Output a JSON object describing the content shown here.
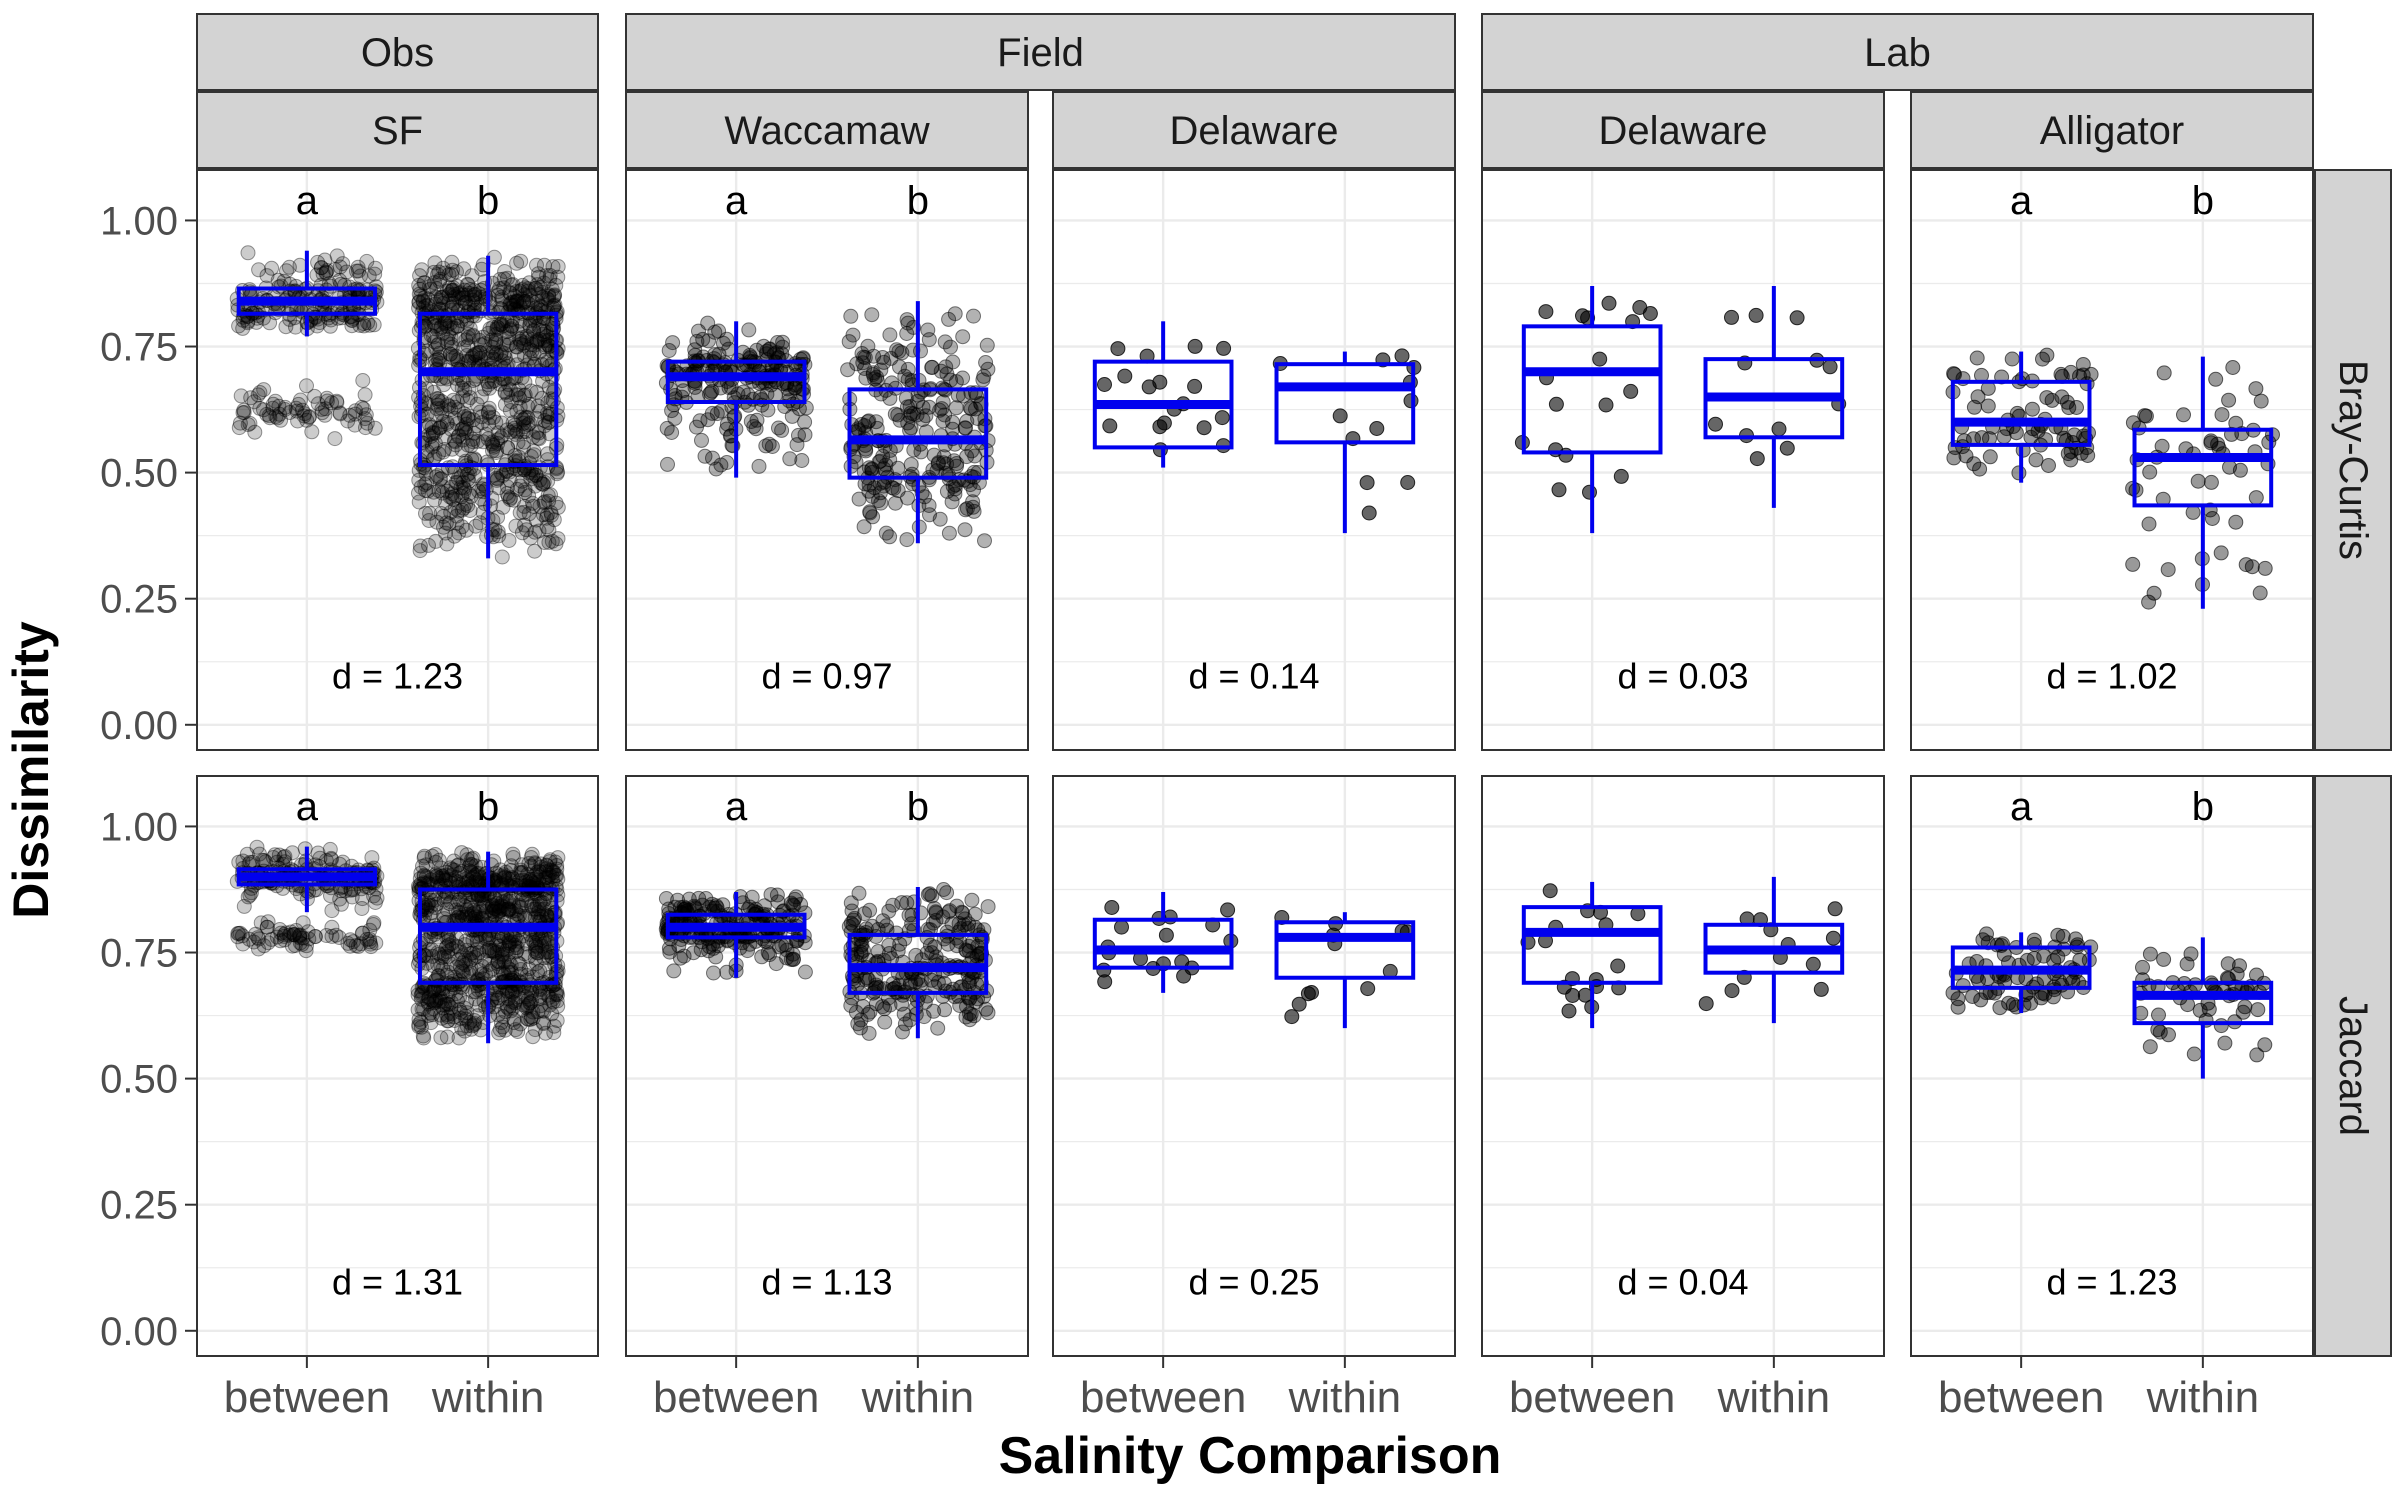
{
  "chart_data": {
    "type": "box",
    "ylabel": "Dissimilarity",
    "xlabel": "Salinity Comparison",
    "ylim": [
      -0.05,
      1.1
    ],
    "yticks": [
      "0.00",
      "0.25",
      "0.50",
      "0.75",
      "1.00"
    ],
    "categories": [
      "between",
      "within"
    ],
    "groups": [
      "Obs",
      "Field",
      "Lab"
    ],
    "sites": [
      "SF",
      "Waccamaw",
      "Delaware",
      "Delaware",
      "Alligator"
    ],
    "site_group": [
      0,
      1,
      1,
      2,
      2
    ],
    "metrics": [
      "Bray-Curtis",
      "Jaccard"
    ],
    "grid": true,
    "colors": {
      "box": "#0000ee",
      "points": "#000000",
      "strip": "#d3d3d3"
    },
    "panels": [
      [
        {
          "site": "SF",
          "letters": [
            "a",
            "b"
          ],
          "d_label": "d = 1.23",
          "n": [
            260,
            900
          ],
          "alpha": 0.2,
          "boxes": [
            {
              "q1": 0.815,
              "median": 0.84,
              "q3": 0.865,
              "wlo": 0.77,
              "whi": 0.94
            },
            {
              "q1": 0.515,
              "median": 0.7,
              "q3": 0.815,
              "wlo": 0.33,
              "whi": 0.93
            }
          ]
        },
        {
          "site": "Waccamaw",
          "letters": [
            "a",
            "b"
          ],
          "d_label": "d = 0.97",
          "n": [
            220,
            260
          ],
          "alpha": 0.3,
          "boxes": [
            {
              "q1": 0.64,
              "median": 0.69,
              "q3": 0.72,
              "wlo": 0.49,
              "whi": 0.8
            },
            {
              "q1": 0.49,
              "median": 0.565,
              "q3": 0.665,
              "wlo": 0.36,
              "whi": 0.84
            }
          ]
        },
        {
          "site": "Delaware",
          "letters": [
            "",
            ""
          ],
          "d_label": "d = 0.14",
          "n": [
            18,
            12
          ],
          "alpha": 0.6,
          "boxes": [
            {
              "q1": 0.55,
              "median": 0.635,
              "q3": 0.72,
              "wlo": 0.51,
              "whi": 0.8
            },
            {
              "q1": 0.56,
              "median": 0.67,
              "q3": 0.715,
              "wlo": 0.38,
              "whi": 0.74
            }
          ]
        },
        {
          "site": "Delaware",
          "letters": [
            "",
            ""
          ],
          "d_label": "d = 0.03",
          "n": [
            18,
            12
          ],
          "alpha": 0.6,
          "boxes": [
            {
              "q1": 0.54,
              "median": 0.7,
              "q3": 0.79,
              "wlo": 0.38,
              "whi": 0.87
            },
            {
              "q1": 0.57,
              "median": 0.65,
              "q3": 0.725,
              "wlo": 0.43,
              "whi": 0.87
            }
          ]
        },
        {
          "site": "Alligator",
          "letters": [
            "a",
            "b"
          ],
          "d_label": "d = 1.02",
          "n": [
            80,
            55
          ],
          "alpha": 0.4,
          "boxes": [
            {
              "q1": 0.555,
              "median": 0.6,
              "q3": 0.68,
              "wlo": 0.48,
              "whi": 0.74
            },
            {
              "q1": 0.435,
              "median": 0.53,
              "q3": 0.585,
              "wlo": 0.23,
              "whi": 0.73
            }
          ]
        }
      ],
      [
        {
          "site": "SF",
          "letters": [
            "a",
            "b"
          ],
          "d_label": "d = 1.31",
          "n": [
            260,
            900
          ],
          "alpha": 0.2,
          "boxes": [
            {
              "q1": 0.885,
              "median": 0.9,
              "q3": 0.915,
              "wlo": 0.83,
              "whi": 0.96
            },
            {
              "q1": 0.69,
              "median": 0.8,
              "q3": 0.875,
              "wlo": 0.57,
              "whi": 0.95
            }
          ]
        },
        {
          "site": "Waccamaw",
          "letters": [
            "a",
            "b"
          ],
          "d_label": "d = 1.13",
          "n": [
            220,
            260
          ],
          "alpha": 0.3,
          "boxes": [
            {
              "q1": 0.78,
              "median": 0.8,
              "q3": 0.825,
              "wlo": 0.7,
              "whi": 0.87
            },
            {
              "q1": 0.67,
              "median": 0.72,
              "q3": 0.785,
              "wlo": 0.58,
              "whi": 0.88
            }
          ]
        },
        {
          "site": "Delaware",
          "letters": [
            "",
            ""
          ],
          "d_label": "d = 0.25",
          "n": [
            18,
            12
          ],
          "alpha": 0.6,
          "boxes": [
            {
              "q1": 0.72,
              "median": 0.755,
              "q3": 0.815,
              "wlo": 0.67,
              "whi": 0.87
            },
            {
              "q1": 0.7,
              "median": 0.78,
              "q3": 0.81,
              "wlo": 0.6,
              "whi": 0.83
            }
          ]
        },
        {
          "site": "Delaware",
          "letters": [
            "",
            ""
          ],
          "d_label": "d = 0.04",
          "n": [
            18,
            12
          ],
          "alpha": 0.6,
          "boxes": [
            {
              "q1": 0.69,
              "median": 0.79,
              "q3": 0.84,
              "wlo": 0.6,
              "whi": 0.89
            },
            {
              "q1": 0.71,
              "median": 0.755,
              "q3": 0.805,
              "wlo": 0.61,
              "whi": 0.9
            }
          ]
        },
        {
          "site": "Alligator",
          "letters": [
            "a",
            "b"
          ],
          "d_label": "d = 1.23",
          "n": [
            80,
            55
          ],
          "alpha": 0.4,
          "boxes": [
            {
              "q1": 0.68,
              "median": 0.715,
              "q3": 0.76,
              "wlo": 0.63,
              "whi": 0.79
            },
            {
              "q1": 0.61,
              "median": 0.665,
              "q3": 0.69,
              "wlo": 0.5,
              "whi": 0.78
            }
          ]
        }
      ]
    ]
  }
}
